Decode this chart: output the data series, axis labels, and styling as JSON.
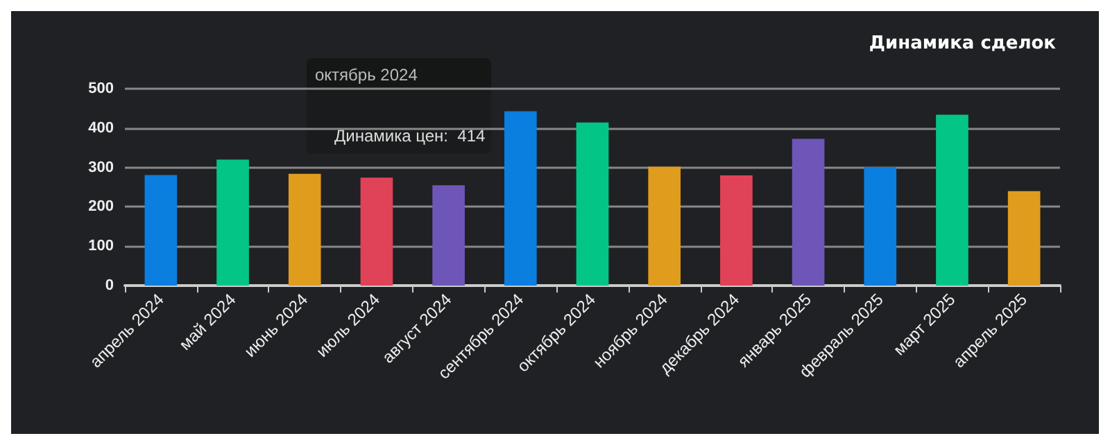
{
  "chart_data": {
    "type": "bar",
    "title": "Динамика сделок",
    "categories": [
      "апрель 2024",
      "май 2024",
      "июнь 2024",
      "июль 2024",
      "август 2024",
      "сентябрь 2024",
      "октябрь 2024",
      "ноябрь 2024",
      "декабрь 2024",
      "январь 2025",
      "февраль 2025",
      "март 2025",
      "апрель 2025"
    ],
    "values": [
      281,
      320,
      284,
      274,
      255,
      443,
      414,
      302,
      280,
      373,
      301,
      434,
      240
    ],
    "colors": [
      "#0a7fe0",
      "#03c686",
      "#e09c1d",
      "#e04258",
      "#6d56b8",
      "#0a7fe0",
      "#03c686",
      "#e09c1d",
      "#e04258",
      "#6d56b8",
      "#0a7fe0",
      "#03c686",
      "#e09c1d"
    ],
    "ylim": [
      0,
      500
    ],
    "yticks": [
      0,
      100,
      200,
      300,
      400,
      500
    ],
    "grid": "y",
    "annotations": [
      "октябрь 2024",
      "Динамика цен:  414"
    ]
  }
}
